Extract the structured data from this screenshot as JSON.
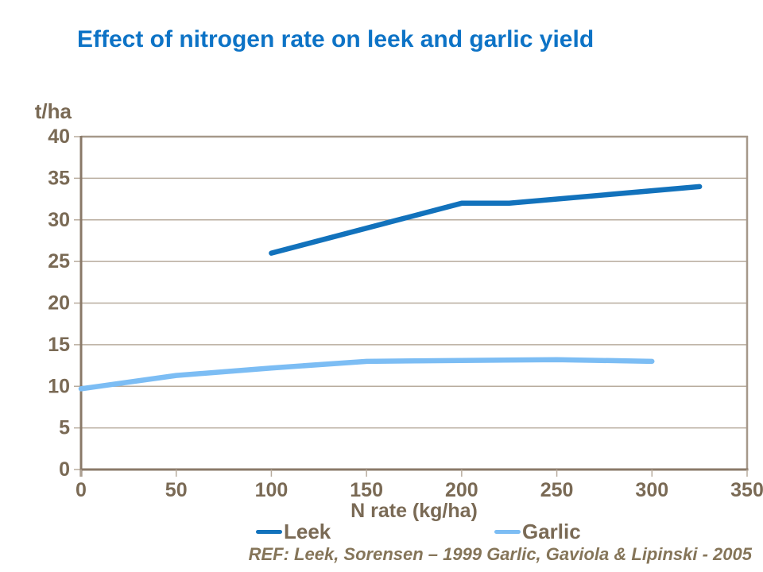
{
  "slide": {
    "title": "Effect of nitrogen rate on leek and garlic yield",
    "reference": "REF: Leek, Sorensen – 1999 Garlic, Gaviola & Lipinski - 2005"
  },
  "colors": {
    "background": "#FFFFFF",
    "title_text": "#0D73C6",
    "axis_text": "#7A6A55",
    "axis_line": "#8A7968",
    "frame_line": "#A5988A",
    "gridline": "#B8AC9E",
    "reference_text": "#857559",
    "leek": "#1272BC",
    "garlic": "#7CBDF4"
  },
  "chart_data": {
    "type": "line",
    "title": "Effect of nitrogen rate on leek and garlic yield",
    "xlabel": "N rate (kg/ha)",
    "ylabel": "t/ha",
    "xlim": [
      0,
      350
    ],
    "ylim": [
      0,
      40
    ],
    "x_ticks": [
      0,
      50,
      100,
      150,
      200,
      250,
      300,
      350
    ],
    "y_ticks": [
      0,
      5,
      10,
      15,
      20,
      25,
      30,
      35,
      40
    ],
    "grid": "horizontal gridlines at every y tick, framed plot area",
    "legend_position": "bottom",
    "series": [
      {
        "name": "Leek",
        "color": "#1272BC",
        "points": [
          [
            100,
            26
          ],
          [
            200,
            32
          ],
          [
            225,
            32
          ],
          [
            325,
            34
          ]
        ]
      },
      {
        "name": "Garlic",
        "color": "#7CBDF4",
        "points": [
          [
            0,
            9.7
          ],
          [
            50,
            11.3
          ],
          [
            100,
            12.2
          ],
          [
            150,
            13
          ],
          [
            200,
            13.1
          ],
          [
            250,
            13.2
          ],
          [
            300,
            13
          ]
        ]
      }
    ]
  }
}
